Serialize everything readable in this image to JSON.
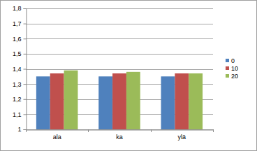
{
  "chart_data": {
    "type": "bar",
    "categories": [
      "ala",
      "ka",
      "ylä"
    ],
    "series": [
      {
        "name": "0",
        "color": "#4f81bd",
        "values": [
          1.35,
          1.35,
          1.35
        ]
      },
      {
        "name": "10",
        "color": "#c0504d",
        "values": [
          1.37,
          1.37,
          1.37
        ]
      },
      {
        "name": "20",
        "color": "#9bbb59",
        "values": [
          1.39,
          1.38,
          1.37
        ]
      }
    ],
    "ylim": [
      1,
      1.8
    ],
    "yticks": [
      1,
      {
        "value": 1.1,
        "label": "1,1"
      },
      {
        "value": 1.2,
        "label": "1,2"
      },
      {
        "value": 1.3,
        "label": "1,3"
      },
      {
        "value": 1.4,
        "label": "1,4"
      },
      {
        "value": 1.5,
        "label": "1,5"
      },
      {
        "value": 1.6,
        "label": "1,6"
      },
      {
        "value": 1.7,
        "label": "1,7"
      },
      {
        "value": 1.8,
        "label": "1,8"
      }
    ],
    "grid": true,
    "legend": "right"
  }
}
